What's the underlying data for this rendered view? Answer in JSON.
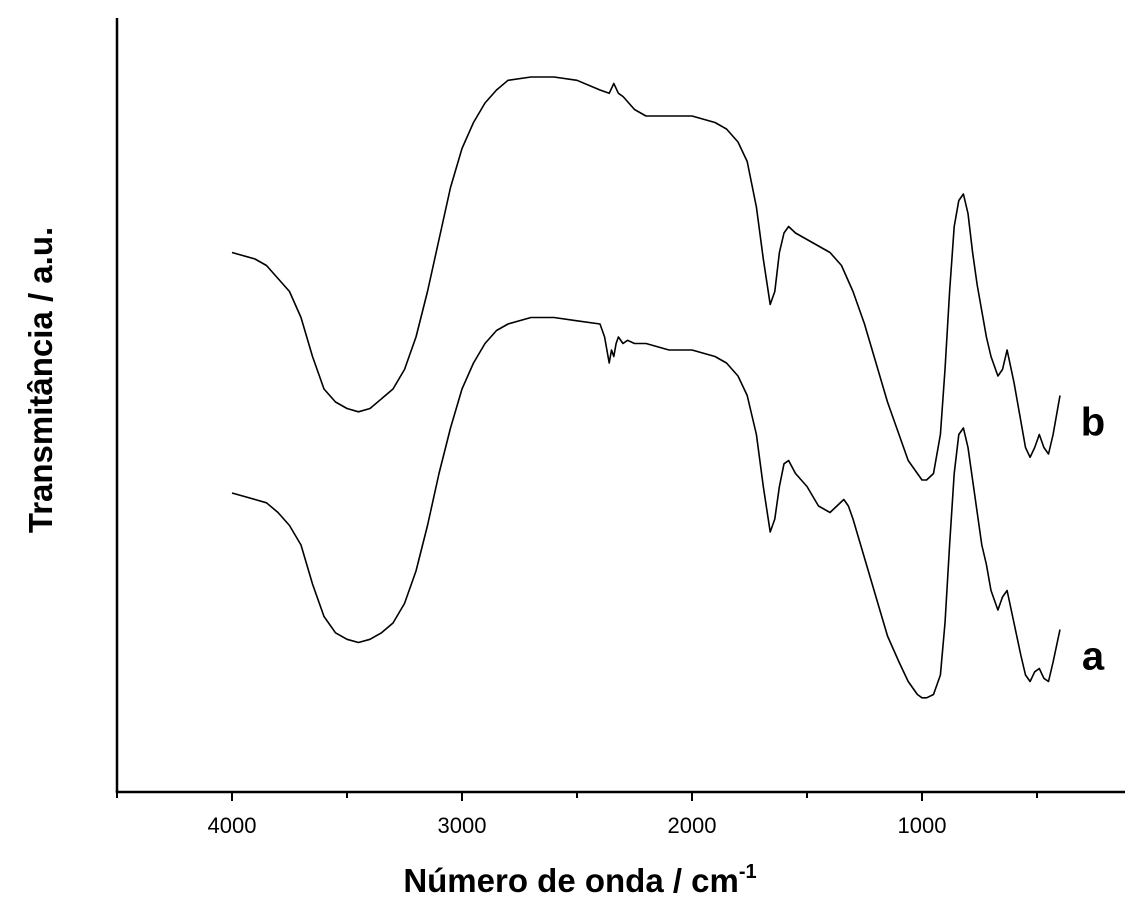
{
  "chart_data": {
    "type": "line",
    "xlabel": "Número de onda / cm",
    "xlabel_superscript": "-1",
    "ylabel": "Transmitância / a.u.",
    "xlim": [
      4500,
      0
    ],
    "x_reversed": true,
    "x_ticks": [
      4000,
      3000,
      2000,
      1000
    ],
    "y_ticks": [],
    "grid": false,
    "legend": "none",
    "line_color": "#000000",
    "series": [
      {
        "name": "b",
        "x": [
          4000,
          3900,
          3850,
          3800,
          3750,
          3700,
          3650,
          3600,
          3550,
          3500,
          3450,
          3400,
          3350,
          3300,
          3250,
          3200,
          3150,
          3100,
          3050,
          3000,
          2950,
          2900,
          2850,
          2800,
          2700,
          2600,
          2500,
          2400,
          2360,
          2340,
          2320,
          2300,
          2250,
          2200,
          2100,
          2000,
          1900,
          1850,
          1800,
          1760,
          1720,
          1690,
          1660,
          1640,
          1620,
          1600,
          1580,
          1550,
          1500,
          1450,
          1400,
          1350,
          1300,
          1250,
          1200,
          1150,
          1100,
          1060,
          1020,
          1000,
          980,
          950,
          920,
          900,
          880,
          860,
          840,
          820,
          800,
          780,
          760,
          740,
          720,
          700,
          670,
          650,
          630,
          600,
          570,
          550,
          530,
          510,
          490,
          470,
          450,
          430,
          400
        ],
        "y": [
          0.83,
          0.82,
          0.81,
          0.79,
          0.77,
          0.73,
          0.67,
          0.62,
          0.6,
          0.59,
          0.585,
          0.59,
          0.605,
          0.62,
          0.65,
          0.7,
          0.77,
          0.85,
          0.93,
          0.99,
          1.03,
          1.06,
          1.08,
          1.095,
          1.1,
          1.1,
          1.095,
          1.08,
          1.075,
          1.09,
          1.075,
          1.07,
          1.05,
          1.04,
          1.04,
          1.04,
          1.03,
          1.02,
          1.0,
          0.97,
          0.9,
          0.82,
          0.75,
          0.77,
          0.83,
          0.86,
          0.87,
          0.86,
          0.85,
          0.84,
          0.83,
          0.81,
          0.77,
          0.72,
          0.66,
          0.6,
          0.55,
          0.51,
          0.49,
          0.48,
          0.48,
          0.49,
          0.55,
          0.65,
          0.77,
          0.87,
          0.91,
          0.92,
          0.89,
          0.83,
          0.78,
          0.74,
          0.7,
          0.67,
          0.64,
          0.65,
          0.68,
          0.63,
          0.57,
          0.53,
          0.515,
          0.53,
          0.55,
          0.53,
          0.52,
          0.55,
          0.61
        ]
      },
      {
        "name": "a",
        "x": [
          4000,
          3900,
          3850,
          3800,
          3750,
          3700,
          3650,
          3600,
          3550,
          3500,
          3450,
          3400,
          3350,
          3300,
          3250,
          3200,
          3150,
          3100,
          3050,
          3000,
          2950,
          2900,
          2850,
          2800,
          2700,
          2600,
          2500,
          2400,
          2380,
          2360,
          2350,
          2340,
          2330,
          2320,
          2300,
          2280,
          2250,
          2200,
          2100,
          2000,
          1900,
          1850,
          1800,
          1760,
          1720,
          1690,
          1660,
          1640,
          1620,
          1600,
          1580,
          1550,
          1500,
          1450,
          1400,
          1370,
          1340,
          1320,
          1300,
          1250,
          1200,
          1150,
          1100,
          1060,
          1020,
          1000,
          980,
          950,
          920,
          900,
          880,
          860,
          840,
          820,
          800,
          780,
          760,
          740,
          720,
          700,
          670,
          650,
          630,
          600,
          570,
          550,
          530,
          510,
          490,
          470,
          450,
          430,
          400
        ],
        "y": [
          0.46,
          0.45,
          0.445,
          0.43,
          0.41,
          0.38,
          0.32,
          0.27,
          0.245,
          0.235,
          0.23,
          0.235,
          0.245,
          0.26,
          0.29,
          0.34,
          0.41,
          0.49,
          0.56,
          0.62,
          0.66,
          0.69,
          0.71,
          0.72,
          0.73,
          0.73,
          0.725,
          0.72,
          0.7,
          0.66,
          0.68,
          0.67,
          0.69,
          0.7,
          0.69,
          0.695,
          0.69,
          0.69,
          0.68,
          0.68,
          0.67,
          0.66,
          0.64,
          0.61,
          0.55,
          0.47,
          0.4,
          0.42,
          0.47,
          0.505,
          0.51,
          0.49,
          0.47,
          0.44,
          0.43,
          0.44,
          0.45,
          0.44,
          0.42,
          0.36,
          0.3,
          0.24,
          0.2,
          0.17,
          0.15,
          0.145,
          0.145,
          0.15,
          0.18,
          0.26,
          0.38,
          0.49,
          0.55,
          0.56,
          0.53,
          0.48,
          0.43,
          0.38,
          0.35,
          0.31,
          0.28,
          0.3,
          0.31,
          0.26,
          0.21,
          0.18,
          0.17,
          0.185,
          0.19,
          0.175,
          0.17,
          0.2,
          0.25
        ]
      }
    ]
  }
}
